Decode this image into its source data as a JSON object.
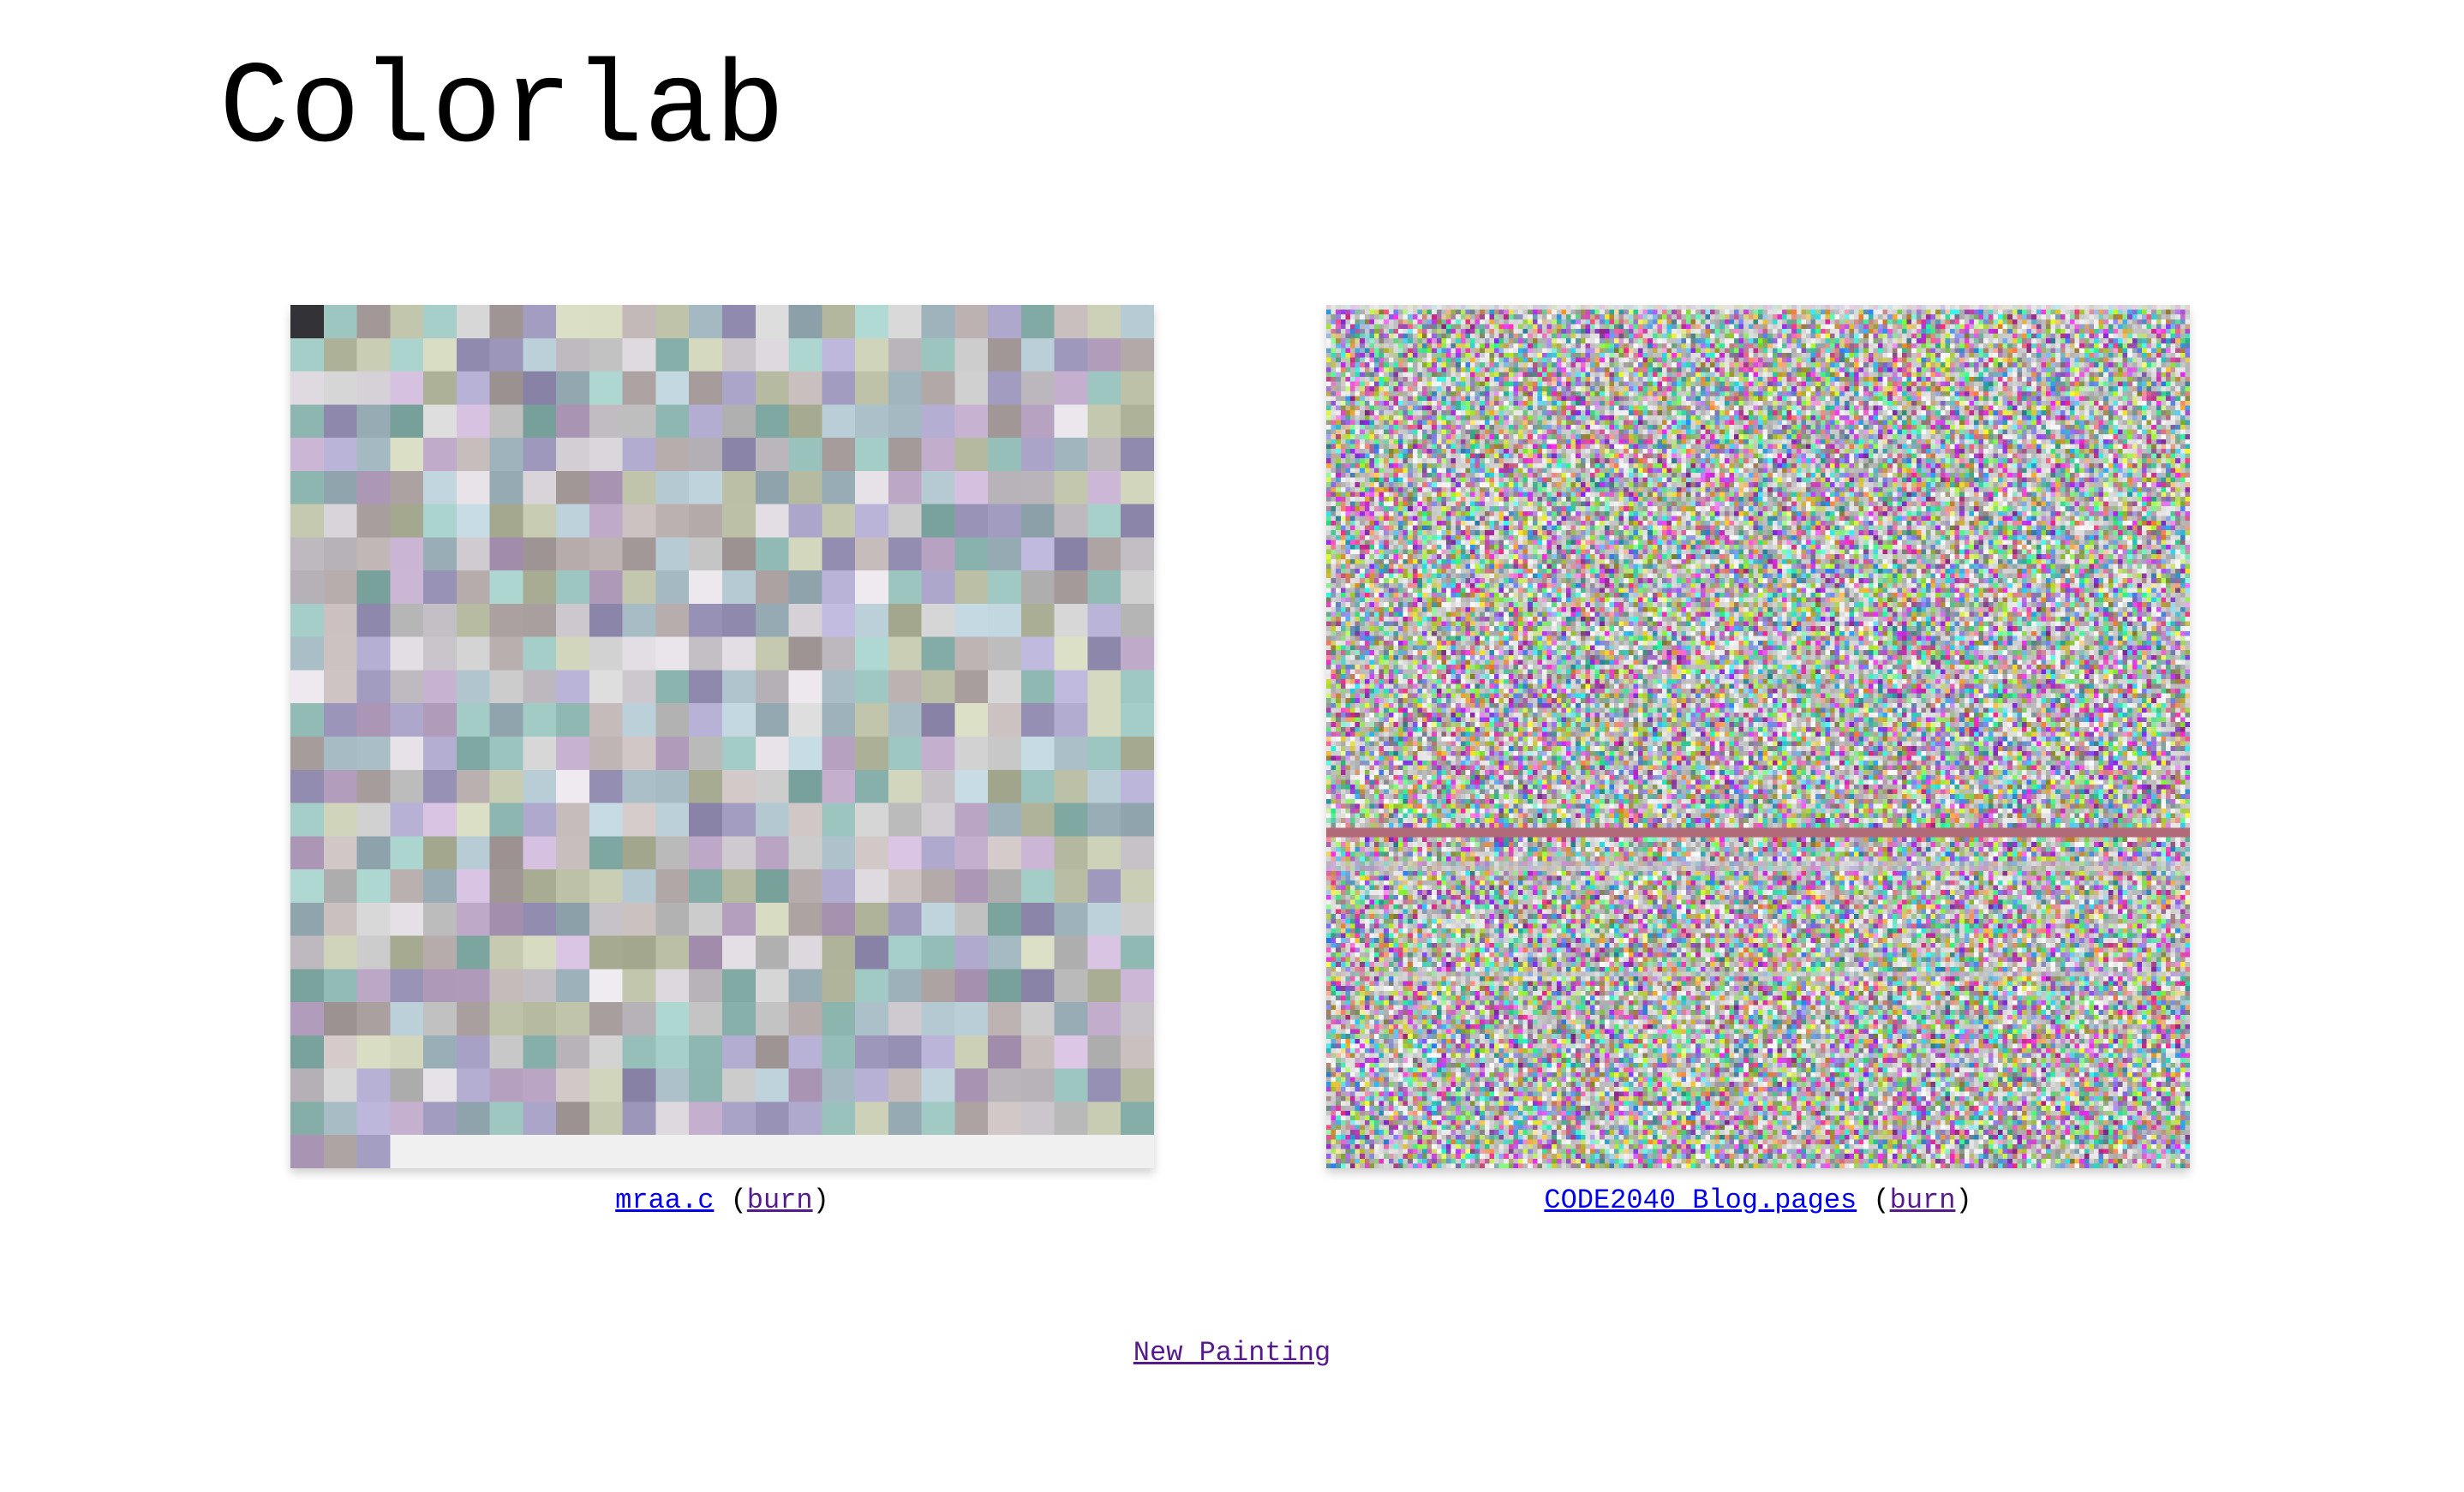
{
  "app": {
    "title": "Colorlab"
  },
  "paintings": [
    {
      "file_name": "mraa.c",
      "burn_label": "burn",
      "paren_open": "(",
      "paren_close": ")"
    },
    {
      "file_name": "CODE2040 Blog.pages",
      "burn_label": "burn",
      "paren_open": "(",
      "paren_close": ")"
    }
  ],
  "new_painting_label": "New Painting",
  "colors": {
    "link": "#0000ee",
    "visited_link": "#551a8b",
    "canvas_background": "#f0f0f0",
    "band": "#b06a78"
  }
}
